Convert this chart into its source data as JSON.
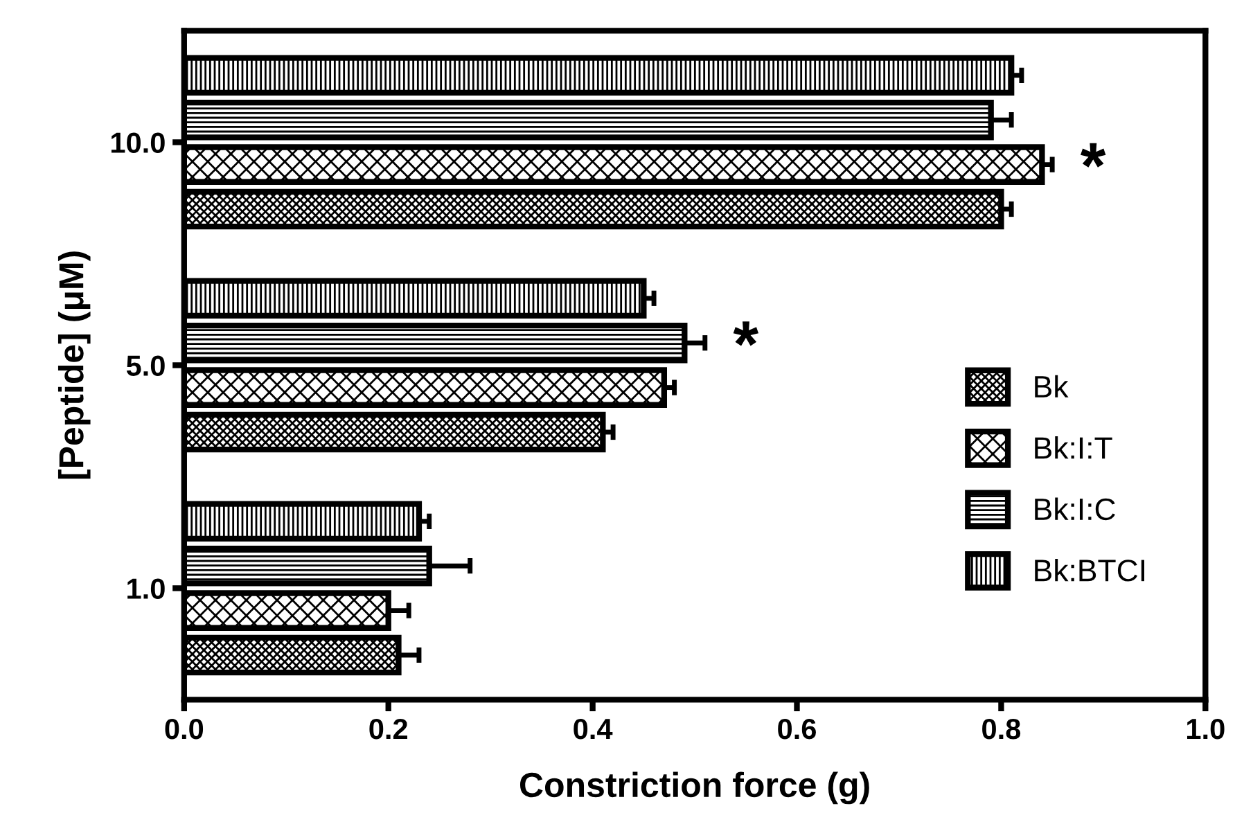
{
  "chart_data": {
    "type": "bar",
    "orientation": "horizontal",
    "xlabel": "Constriction force (g)",
    "ylabel": "[Peptide] (μM)",
    "categories": [
      "10.0",
      "5.0",
      "1.0"
    ],
    "series": [
      {
        "name": "Bk",
        "color": "#000000",
        "values": [
          0.8,
          0.41,
          0.21
        ],
        "errors": [
          0.01,
          0.01,
          0.02
        ]
      },
      {
        "name": "Bk:I:T",
        "color": "#000000",
        "values": [
          0.84,
          0.47,
          0.2
        ],
        "errors": [
          0.01,
          0.01,
          0.02
        ]
      },
      {
        "name": "Bk:I:C",
        "color": "#000000",
        "values": [
          0.79,
          0.49,
          0.24
        ],
        "errors": [
          0.02,
          0.02,
          0.04
        ]
      },
      {
        "name": "Bk:BTCI",
        "color": "#000000",
        "values": [
          0.81,
          0.45,
          0.23
        ],
        "errors": [
          0.01,
          0.01,
          0.01
        ]
      }
    ],
    "xlim": [
      0,
      1
    ],
    "xticks": [
      {
        "value": 0,
        "label": "0.0"
      },
      {
        "value": 0.2,
        "label": "0.2"
      },
      {
        "value": 0.4,
        "label": "0.4"
      },
      {
        "value": 0.6,
        "label": "0.6"
      },
      {
        "value": 0.8,
        "label": "0.8"
      },
      {
        "value": 1,
        "label": "1.0"
      }
    ],
    "annotations": [
      "*",
      "*"
    ],
    "grid": false,
    "legend": "right"
  }
}
